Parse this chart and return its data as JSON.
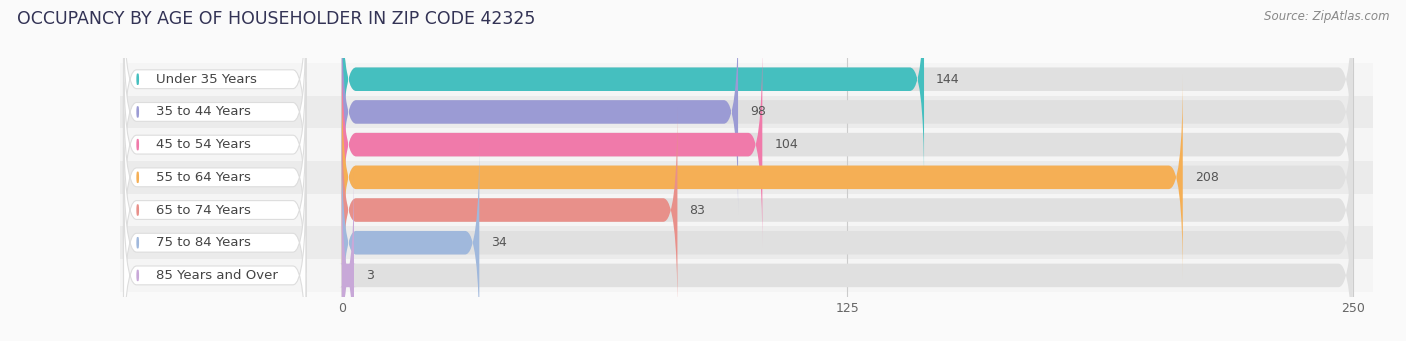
{
  "title": "OCCUPANCY BY AGE OF HOUSEHOLDER IN ZIP CODE 42325",
  "source": "Source: ZipAtlas.com",
  "categories": [
    "Under 35 Years",
    "35 to 44 Years",
    "45 to 54 Years",
    "55 to 64 Years",
    "65 to 74 Years",
    "75 to 84 Years",
    "85 Years and Over"
  ],
  "values": [
    144,
    98,
    104,
    208,
    83,
    34,
    3
  ],
  "colors": [
    "#45BFBF",
    "#9B9BD4",
    "#F07AAA",
    "#F5AF55",
    "#E8908A",
    "#A0B8DC",
    "#C8A8D8"
  ],
  "xlim_max": 250,
  "xticks": [
    0,
    125,
    250
  ],
  "bar_height": 0.72,
  "row_bg_even": "#f5f5f5",
  "row_bg_odd": "#ebebeb",
  "bar_track_color": "#e0e0e0",
  "title_fontsize": 12.5,
  "label_fontsize": 9.5,
  "value_fontsize": 9,
  "source_fontsize": 8.5,
  "label_pill_color": "#ffffff",
  "label_text_color": "#444444",
  "value_color_outside": "#555555",
  "value_color_inside": "#ffffff"
}
